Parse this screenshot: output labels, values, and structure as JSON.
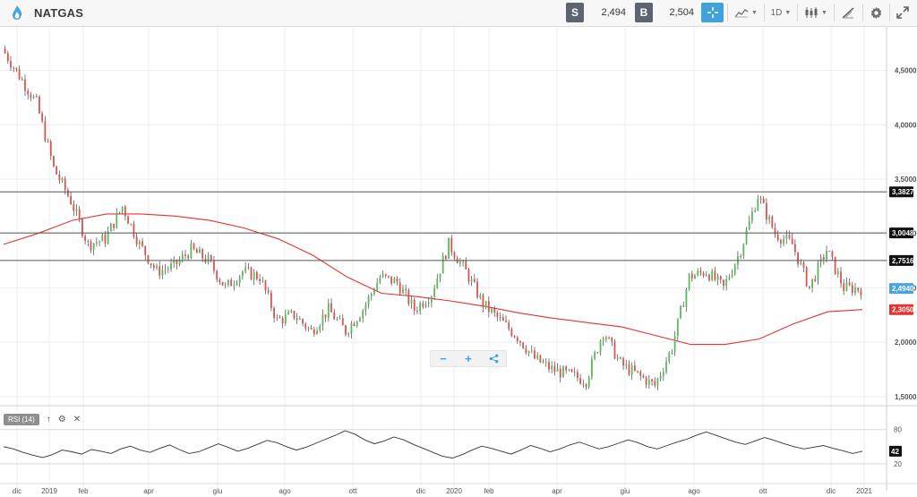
{
  "toolbar": {
    "symbol": "NATGAS",
    "sell_label": "S",
    "sell_price": "2,494",
    "buy_label": "B",
    "buy_price": "2,504",
    "timeframe": "1D",
    "accent": "#3fa2dd"
  },
  "zoom": {
    "minus_icon": "minus-icon",
    "plus_icon": "plus-icon",
    "share_icon": "share-icon"
  },
  "rsi": {
    "label": "RSI (14)",
    "ticks": [
      "80",
      "20"
    ],
    "value": "42"
  },
  "chart_data": [
    {
      "type": "candlestick",
      "title": "NATGAS",
      "y_ticks": [
        "4,5000",
        "4,0000",
        "3,5000",
        "3,0000",
        "2,5000",
        "2,0000",
        "1,5000"
      ],
      "x_ticks": [
        "dic",
        "2019",
        "feb",
        "apr",
        "giu",
        "ago",
        "ott",
        "dic",
        "2020",
        "feb",
        "apr",
        "giu",
        "ago",
        "ott",
        "dic",
        "2021"
      ],
      "ylim": [
        1.4,
        4.9
      ],
      "price_series": [
        4.7,
        4.45,
        4.2,
        3.6,
        3.3,
        2.9,
        2.95,
        3.25,
        2.9,
        2.65,
        2.7,
        2.85,
        2.75,
        2.5,
        2.65,
        2.6,
        2.2,
        2.25,
        2.1,
        2.3,
        2.1,
        2.3,
        2.6,
        2.55,
        2.3,
        2.45,
        2.9,
        2.65,
        2.35,
        2.2,
        2.05,
        1.85,
        1.75,
        1.7,
        1.65,
        2.1,
        1.8,
        1.7,
        1.6,
        1.95,
        2.6,
        2.65,
        2.5,
        2.85,
        3.35,
        3.0,
        2.9,
        2.5,
        2.85,
        2.5,
        2.49
      ],
      "candle_dates": [
        "dic",
        "dic",
        "dic",
        "2019",
        "2019",
        "gen",
        "feb",
        "feb",
        "feb",
        "mar",
        "mar",
        "apr",
        "apr",
        "mag",
        "mag",
        "giu",
        "giu",
        "lug",
        "lug",
        "ago",
        "ago",
        "set",
        "set",
        "ott",
        "ott",
        "nov",
        "nov",
        "dic",
        "dic",
        "2020",
        "gen",
        "feb",
        "feb",
        "mar",
        "mar",
        "apr",
        "apr",
        "mag",
        "mag",
        "giu",
        "giu",
        "lug",
        "lug",
        "ago",
        "ago",
        "set",
        "set",
        "ott",
        "ott",
        "nov",
        "dic"
      ],
      "ma_series": [
        2.9,
        3.0,
        3.12,
        3.18,
        3.18,
        3.16,
        3.12,
        3.05,
        2.95,
        2.8,
        2.6,
        2.45,
        2.42,
        2.38,
        2.33,
        2.27,
        2.22,
        2.18,
        2.14,
        2.06,
        1.98,
        1.98,
        2.03,
        2.17,
        2.28,
        2.3
      ],
      "levels": [
        {
          "value": 3.3827,
          "label": "3,3827",
          "bg": "#111111"
        },
        {
          "value": 3.0048,
          "label": "3,0048",
          "bg": "#111111"
        },
        {
          "value": 2.7516,
          "label": "2,7516",
          "bg": "#111111"
        }
      ],
      "current": {
        "value": 2.494,
        "label": "2,4940",
        "bg": "#4aa3df"
      },
      "ma_last": {
        "value": 2.3,
        "label": "2,3050",
        "bg": "#e5322f"
      },
      "colors": {
        "up": "#5cb85c",
        "down": "#d9534f",
        "ma": "#e5322f",
        "level": "#555555"
      }
    },
    {
      "type": "line",
      "title": "RSI (14)",
      "y_ticks": [
        "80",
        "20"
      ],
      "ylim": [
        0,
        100
      ],
      "values": [
        50,
        46,
        40,
        35,
        31,
        36,
        44,
        41,
        37,
        45,
        42,
        38,
        46,
        51,
        44,
        40,
        47,
        53,
        45,
        38,
        41,
        48,
        55,
        49,
        42,
        47,
        54,
        61,
        57,
        50,
        44,
        49,
        56,
        63,
        70,
        78,
        72,
        62,
        55,
        60,
        67,
        62,
        54,
        47,
        40,
        33,
        30,
        36,
        44,
        51,
        47,
        42,
        37,
        44,
        52,
        47,
        41,
        46,
        53,
        58,
        52,
        46,
        50,
        56,
        62,
        57,
        50,
        46,
        52,
        58,
        63,
        70,
        76,
        70,
        64,
        58,
        54,
        60,
        66,
        61,
        55,
        50,
        46,
        49,
        52,
        47,
        43,
        38,
        42
      ],
      "current": "42"
    }
  ]
}
